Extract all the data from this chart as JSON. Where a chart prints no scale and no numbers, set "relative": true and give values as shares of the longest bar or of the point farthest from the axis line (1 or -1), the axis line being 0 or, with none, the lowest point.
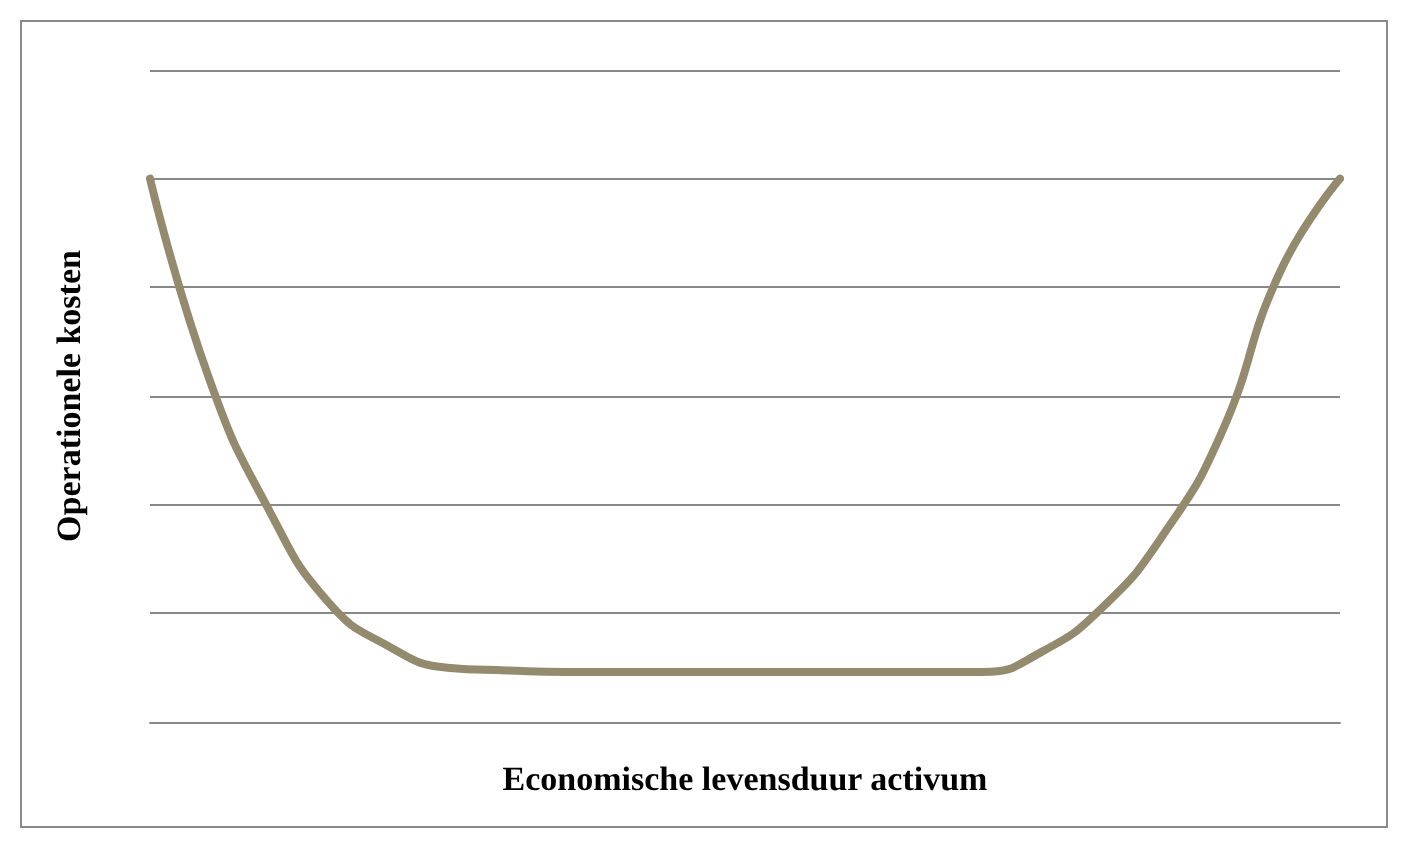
{
  "chart_data": {
    "type": "line",
    "xlabel": "Economische levensduur activum",
    "ylabel": "Operationele kosten",
    "relative": true,
    "grid": "y",
    "marker": "none",
    "line_style": "solid",
    "categories": [
      null,
      null,
      null,
      null,
      null,
      null,
      null,
      null,
      null,
      null,
      null,
      null,
      null,
      null,
      null,
      null,
      null,
      null,
      null,
      null,
      null
    ],
    "series": [
      {
        "color": "#948a6e",
        "values": [
          1,
          0.63,
          0.39,
          0.22,
          0.14,
          0.1,
          0.095,
          0.092,
          0.092,
          0.092,
          0.092,
          0.092,
          0.092,
          0.092,
          0.092,
          0.13,
          0.21,
          0.34,
          0.53,
          0.83,
          1
        ]
      }
    ]
  }
}
